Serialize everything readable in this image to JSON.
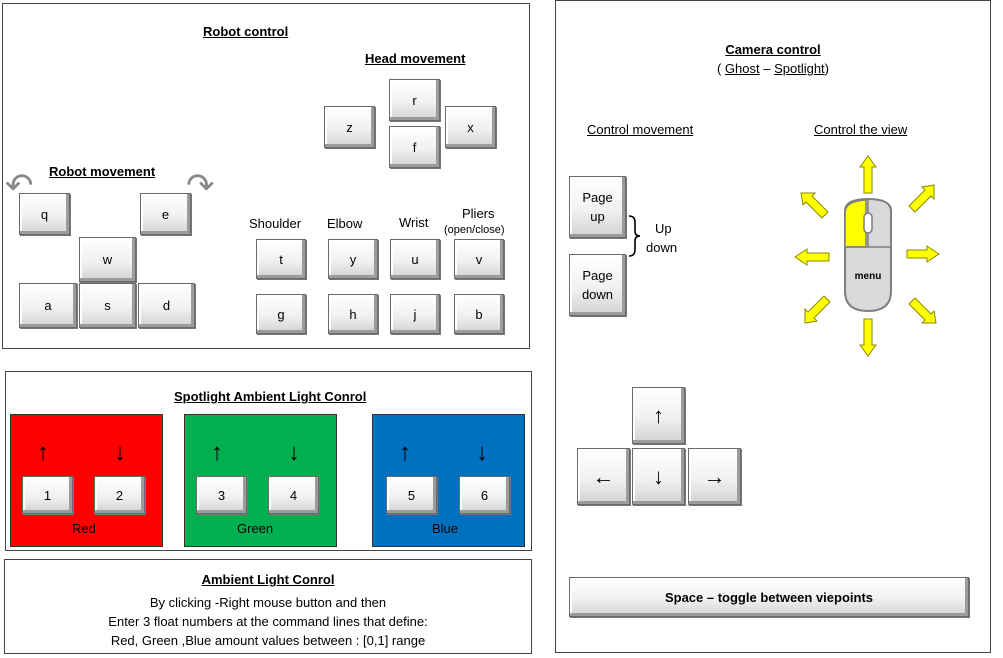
{
  "robot": {
    "title": "Robot control",
    "head_title": "Head movement",
    "head_keys": [
      "r",
      "z",
      "x",
      "f"
    ],
    "move_title": "Robot movement",
    "move_keys": [
      "q",
      "e",
      "w",
      "a",
      "s",
      "d"
    ],
    "joint_labels": [
      "Shoulder",
      "Elbow",
      "Wrist",
      "Pliers"
    ],
    "pliers_note": "(open/close)",
    "joint_keys_top": [
      "t",
      "y",
      "u",
      "v"
    ],
    "joint_keys_bottom": [
      "g",
      "h",
      "j",
      "b"
    ]
  },
  "spotlight": {
    "title": "Spotlight Ambient Light Conrol",
    "groups": [
      {
        "label": "Red",
        "color": "#ff0000",
        "keys": [
          "1",
          "2"
        ]
      },
      {
        "label": "Green",
        "color": "#00b050",
        "keys": [
          "3",
          "4"
        ]
      },
      {
        "label": "Blue",
        "color": "#0070c0",
        "keys": [
          "5",
          "6"
        ]
      }
    ],
    "up_arrow": "↑",
    "down_arrow": "↓"
  },
  "ambient": {
    "title": "Ambient Light Conrol",
    "lines": [
      "By clicking -Right mouse button and then",
      "Enter 3 float numbers  at the command lines that define:",
      "Red, Green ,Blue amount values between : [0,1] range"
    ]
  },
  "camera": {
    "title": "Camera control",
    "subtitle_open": "( ",
    "ghost": "Ghost",
    "dash": " – ",
    "spotlight": "Spotlight",
    "subtitle_close": ")",
    "movement_label": "Control movement",
    "view_label": "Control the view",
    "page_up": [
      "Page",
      "up"
    ],
    "page_down": [
      "Page",
      "down"
    ],
    "updown": [
      "Up",
      "down"
    ],
    "mouse_label": "menu",
    "arrow_keys": {
      "up": "↑",
      "left": "←",
      "down": "↓",
      "right": "→"
    },
    "space_label": "Space – toggle between viepoints",
    "arrow_color": "#ffff00"
  }
}
